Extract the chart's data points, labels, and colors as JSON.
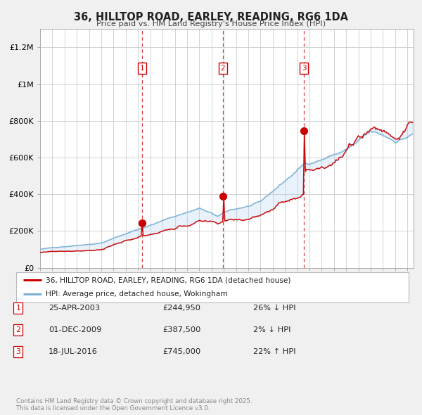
{
  "title": "36, HILLTOP ROAD, EARLEY, READING, RG6 1DA",
  "subtitle": "Price paid vs. HM Land Registry's House Price Index (HPI)",
  "background_color": "#f0f0f0",
  "plot_background": "#ffffff",
  "red_color": "#cc0000",
  "hpi_line_color": "#7ab0d4",
  "fill_color": "#ddeeff",
  "vline_color": "#cc0000",
  "grid_color": "#cccccc",
  "ylim": [
    0,
    1300000
  ],
  "yticks": [
    0,
    200000,
    400000,
    600000,
    800000,
    1000000,
    1200000
  ],
  "ytick_labels": [
    "£0",
    "£200K",
    "£400K",
    "£600K",
    "£800K",
    "£1M",
    "£1.2M"
  ],
  "xmin": 1995.0,
  "xmax": 2025.5,
  "sales": [
    {
      "date": 2003.32,
      "price": 244950,
      "label": "1"
    },
    {
      "date": 2009.92,
      "price": 387500,
      "label": "2"
    },
    {
      "date": 2016.55,
      "price": 745000,
      "label": "3"
    }
  ],
  "legend_entries": [
    "36, HILLTOP ROAD, EARLEY, READING, RG6 1DA (detached house)",
    "HPI: Average price, detached house, Wokingham"
  ],
  "table_rows": [
    {
      "num": "1",
      "date": "25-APR-2003",
      "price": "£244,950",
      "hpi": "26% ↓ HPI"
    },
    {
      "num": "2",
      "date": "01-DEC-2009",
      "price": "£387,500",
      "hpi": "2% ↓ HPI"
    },
    {
      "num": "3",
      "date": "18-JUL-2016",
      "price": "£745,000",
      "hpi": "22% ↑ HPI"
    }
  ],
  "footer": "Contains HM Land Registry data © Crown copyright and database right 2025.\nThis data is licensed under the Open Government Licence v3.0."
}
